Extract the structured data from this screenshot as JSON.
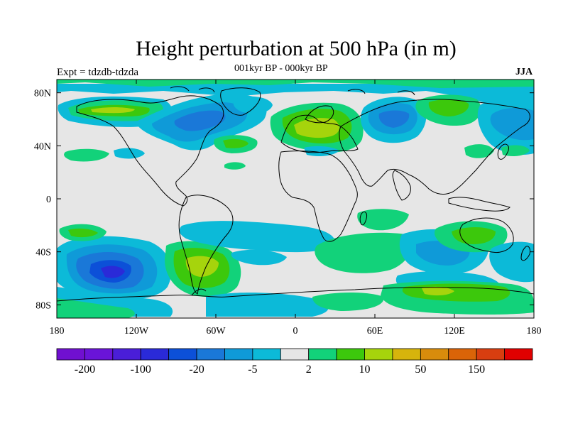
{
  "title": "Height perturbation at 500 hPa (in m)",
  "subtitle": "001kyr BP - 000kyr BP",
  "experiment_label": "Expt = tdzdb-tdzda",
  "season_label": "JJA",
  "axes": {
    "lon_ticks": [
      {
        "value": -180,
        "label": "180"
      },
      {
        "value": -120,
        "label": "120W"
      },
      {
        "value": -60,
        "label": "60W"
      },
      {
        "value": 0,
        "label": "0"
      },
      {
        "value": 60,
        "label": "60E"
      },
      {
        "value": 120,
        "label": "120E"
      },
      {
        "value": 180,
        "label": "180"
      }
    ],
    "lat_ticks": [
      {
        "value": 80,
        "label": "80N"
      },
      {
        "value": 40,
        "label": "40N"
      },
      {
        "value": 0,
        "label": "0"
      },
      {
        "value": -40,
        "label": "40S"
      },
      {
        "value": -80,
        "label": "80S"
      }
    ],
    "lon_range": [
      -180,
      180
    ],
    "lat_range": [
      -90,
      90
    ]
  },
  "colorbar": {
    "colors": [
      "#7010d0",
      "#6a14d8",
      "#4a1ed8",
      "#2a2ad8",
      "#0c50d8",
      "#1a78d8",
      "#0f9ad8",
      "#0cbad8",
      "#e6e6e6",
      "#12d27a",
      "#3cc80c",
      "#a6d40c",
      "#d6b40c",
      "#d88c0c",
      "#da6408",
      "#d83e10",
      "#e00000"
    ],
    "tick_labels": [
      {
        "index": 1,
        "label": "-200"
      },
      {
        "index": 3,
        "label": "-100"
      },
      {
        "index": 5,
        "label": "-20"
      },
      {
        "index": 7,
        "label": "-5"
      },
      {
        "index": 9,
        "label": "2"
      },
      {
        "index": 11,
        "label": "10"
      },
      {
        "index": 13,
        "label": "50"
      },
      {
        "index": 15,
        "label": "150"
      }
    ]
  },
  "chart_data": {
    "type": "heatmap",
    "title": "Height perturbation at 500 hPa (in m)",
    "subtitle": "001kyr BP - 000kyr BP",
    "background_level": "near zero (-2 to 2)",
    "anomalies": [
      {
        "region": "North America / Greenland",
        "lon": -95,
        "lat": 62,
        "sign": "negative",
        "approx": -10
      },
      {
        "region": "Northern Europe",
        "lon": 20,
        "lat": 58,
        "sign": "positive",
        "approx": 10
      },
      {
        "region": "West Siberia",
        "lon": 65,
        "lat": 65,
        "sign": "negative",
        "approx": -10
      },
      {
        "region": "South Pacific",
        "lon": -130,
        "lat": -55,
        "sign": "negative",
        "approx": -100
      },
      {
        "region": "South Atlantic",
        "lon": -55,
        "lat": -50,
        "sign": "positive",
        "approx": 10
      },
      {
        "region": "Southern Indian Ocean",
        "lon": 100,
        "lat": -68,
        "sign": "positive",
        "approx": 10
      },
      {
        "region": "Australia",
        "lon": 140,
        "lat": -30,
        "sign": "positive",
        "approx": 5
      }
    ]
  }
}
